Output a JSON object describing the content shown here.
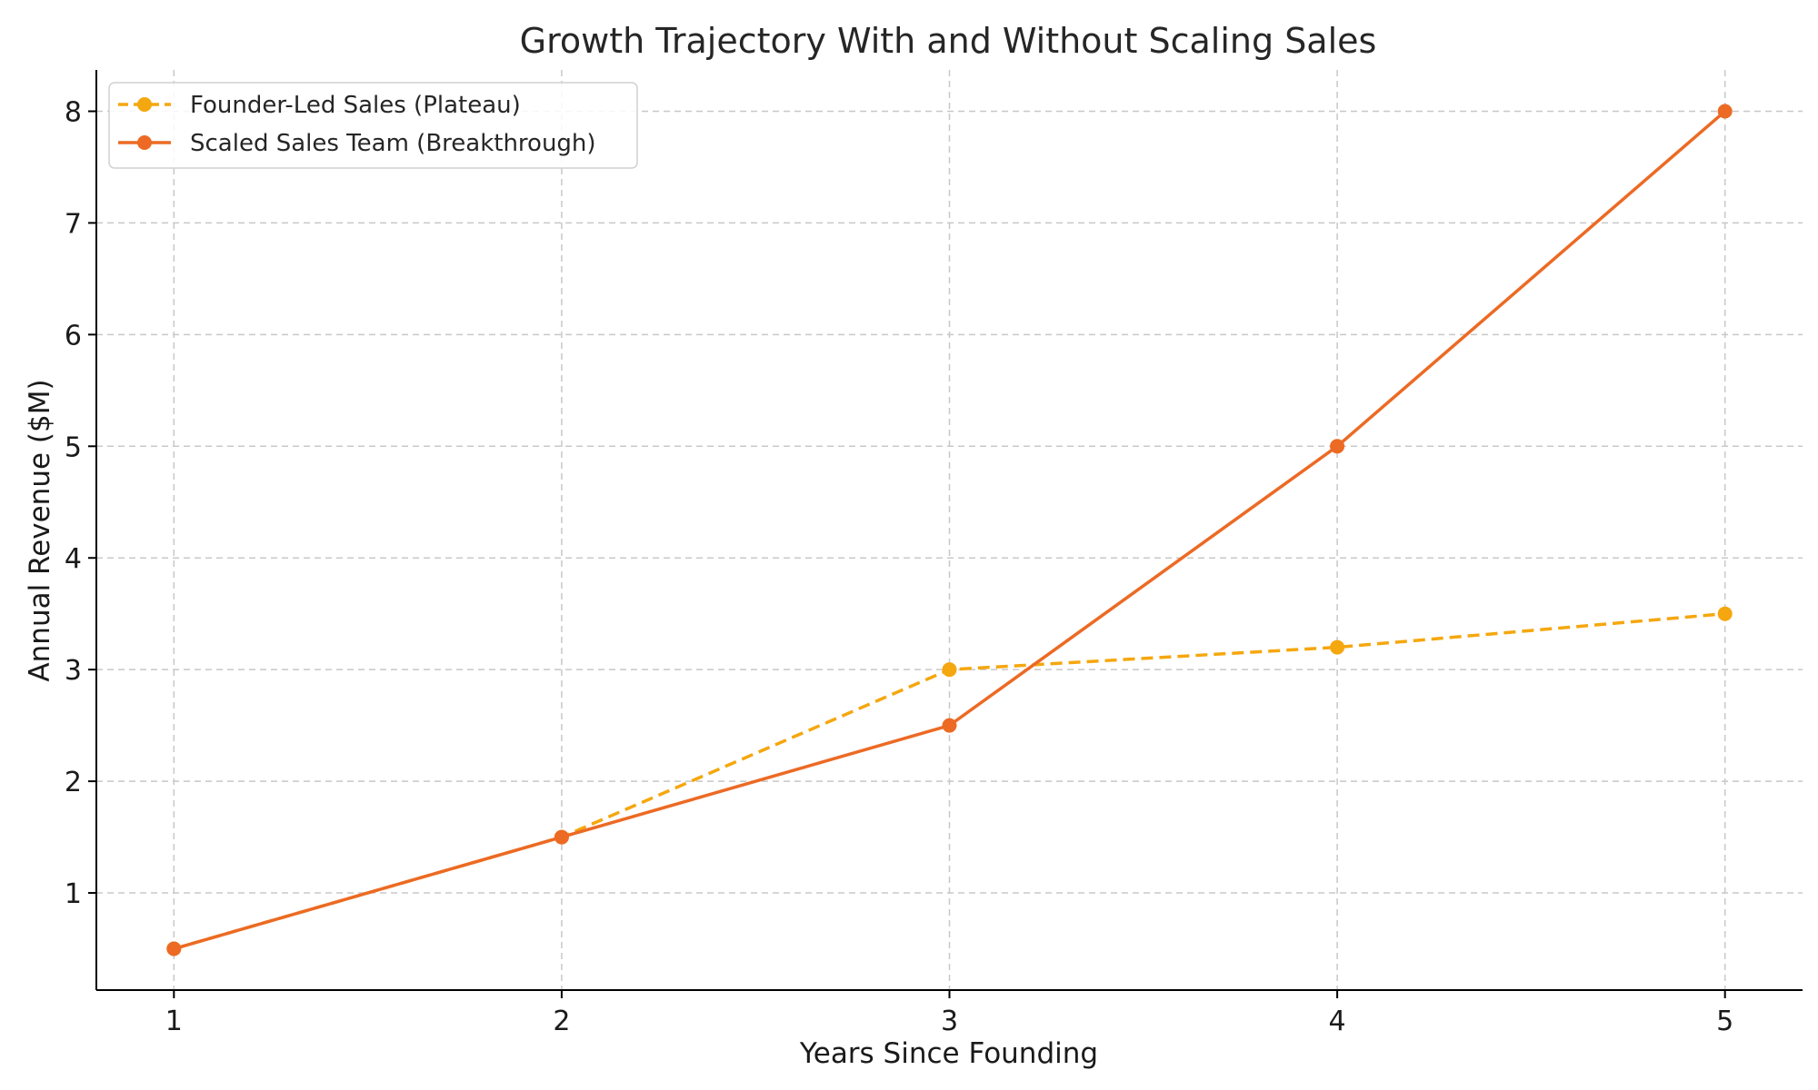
{
  "chart_data": {
    "type": "line",
    "title": "Growth Trajectory With and Without Scaling Sales",
    "xlabel": "Years Since Founding",
    "ylabel": "Annual Revenue ($M)",
    "x": [
      1,
      2,
      3,
      4,
      5
    ],
    "xlim": [
      0.8,
      5.2
    ],
    "ylim": [
      0.13,
      8.37
    ],
    "xticks": [
      1,
      2,
      3,
      4,
      5
    ],
    "yticks": [
      1,
      2,
      3,
      4,
      5,
      6,
      7,
      8
    ],
    "grid": true,
    "legend_position": "top-left",
    "series": [
      {
        "name": "Founder-Led Sales (Plateau)",
        "values": [
          0.5,
          1.5,
          3.0,
          3.2,
          3.5
        ],
        "color": "#f5a70f",
        "line_style": "dashed",
        "marker": "circle"
      },
      {
        "name": "Scaled Sales Team (Breakthrough)",
        "values": [
          0.5,
          1.5,
          2.5,
          5.0,
          8.0
        ],
        "color": "#ec6a24",
        "line_style": "solid",
        "marker": "circle"
      }
    ]
  }
}
